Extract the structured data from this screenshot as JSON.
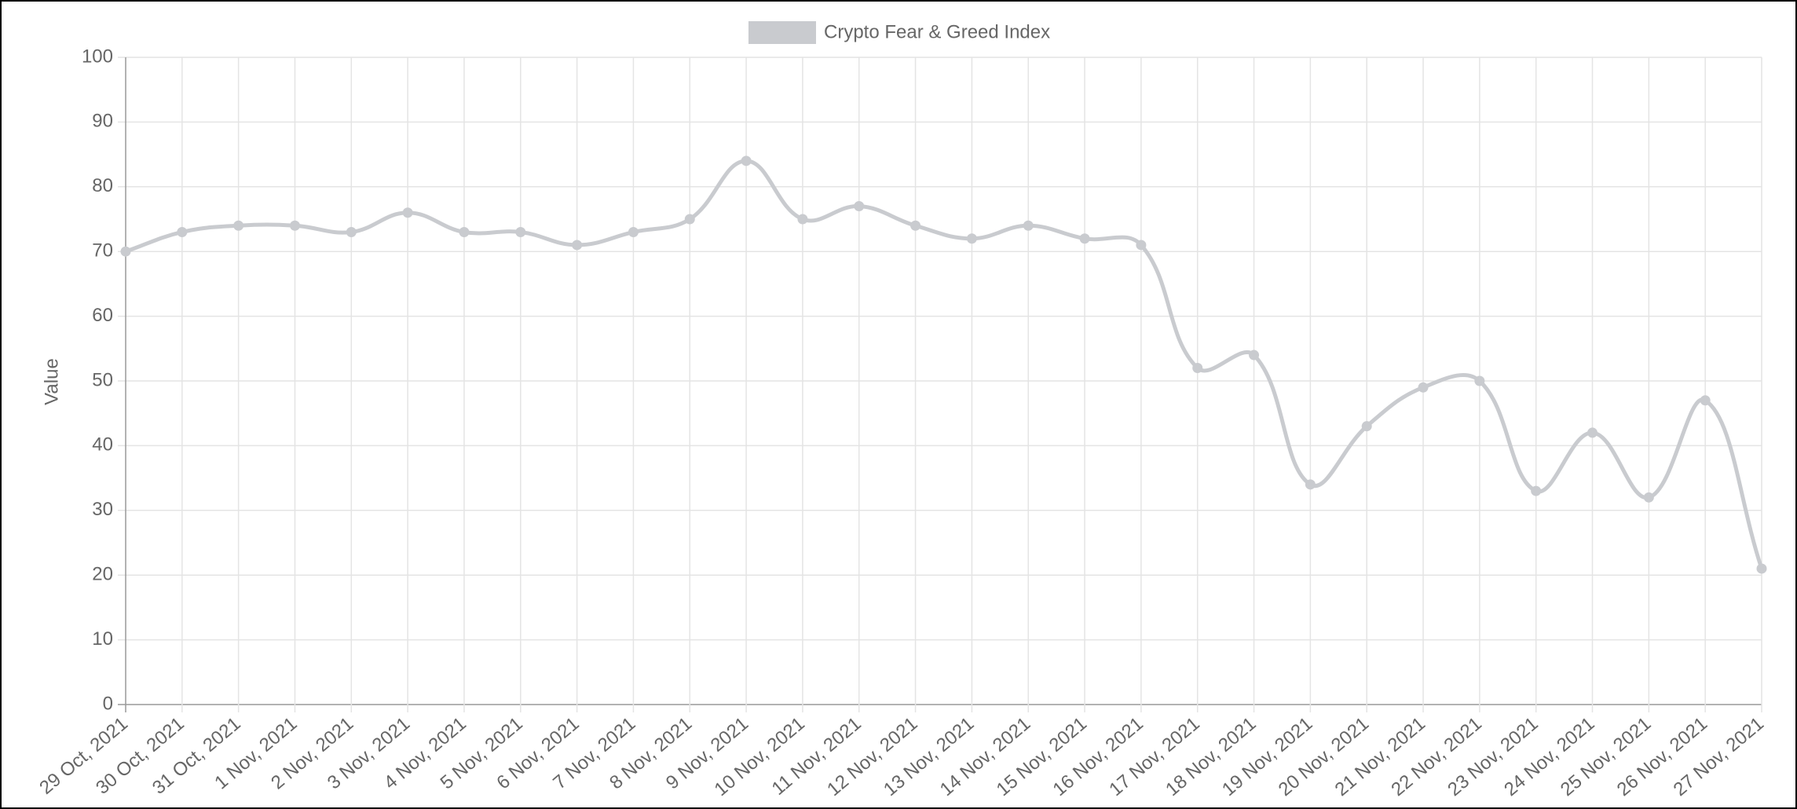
{
  "chart_data": {
    "type": "line",
    "y_label": "Value",
    "categories": [
      "29 Oct, 2021",
      "30 Oct, 2021",
      "31 Oct, 2021",
      "1 Nov, 2021",
      "2 Nov, 2021",
      "3 Nov, 2021",
      "4 Nov, 2021",
      "5 Nov, 2021",
      "6 Nov, 2021",
      "7 Nov, 2021",
      "8 Nov, 2021",
      "9 Nov, 2021",
      "10 Nov, 2021",
      "11 Nov, 2021",
      "12 Nov, 2021",
      "13 Nov, 2021",
      "14 Nov, 2021",
      "15 Nov, 2021",
      "16 Nov, 2021",
      "17 Nov, 2021",
      "18 Nov, 2021",
      "19 Nov, 2021",
      "20 Nov, 2021",
      "21 Nov, 2021",
      "22 Nov, 2021",
      "23 Nov, 2021",
      "24 Nov, 2021",
      "25 Nov, 2021",
      "26 Nov, 2021",
      "27 Nov, 2021"
    ],
    "series": [
      {
        "name": "Crypto Fear & Greed Index",
        "color": "#c9cbcf",
        "values": [
          70,
          73,
          74,
          74,
          73,
          76,
          73,
          73,
          71,
          73,
          75,
          84,
          75,
          77,
          74,
          72,
          74,
          72,
          71,
          52,
          54,
          34,
          43,
          49,
          50,
          33,
          42,
          32,
          47,
          21
        ]
      }
    ],
    "ylim": [
      0,
      100
    ],
    "yticks": [
      0,
      10,
      20,
      30,
      40,
      50,
      60,
      70,
      80,
      90,
      100
    ],
    "grid": true,
    "legend": "top"
  }
}
